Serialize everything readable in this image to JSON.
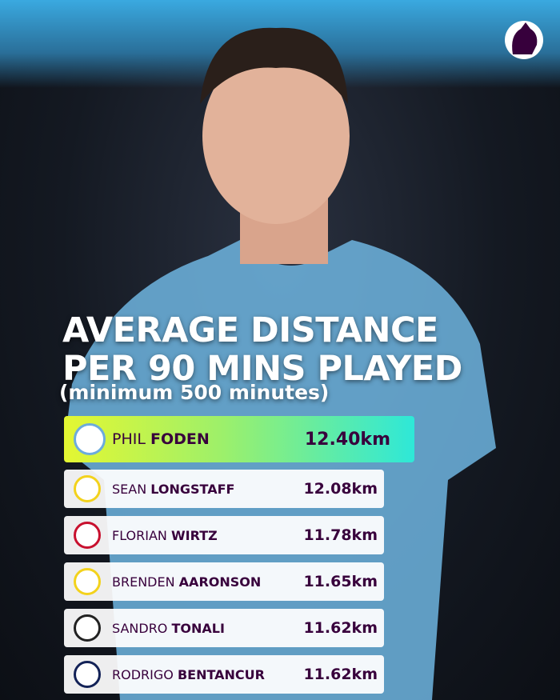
{
  "header": {
    "title_lines": [
      "AVERAGE DISTANCE",
      "PER 90 MINS PLAYED"
    ],
    "subtitle": "(minimum 500 minutes)"
  },
  "table": {
    "rows": [
      {
        "first": "PHIL",
        "last": "FODEN",
        "distance": "12.40km"
      },
      {
        "first": "SEAN",
        "last": "LONGSTAFF",
        "distance": "12.08km"
      },
      {
        "first": "FLORIAN",
        "last": "WIRTZ",
        "distance": "11.78km"
      },
      {
        "first": "BRENDEN",
        "last": "AARONSON",
        "distance": "11.65km"
      },
      {
        "first": "SANDRO",
        "last": "TONALI",
        "distance": "11.62km"
      },
      {
        "first": "RODRIGO",
        "last": "BENTANCUR",
        "distance": "11.62km"
      }
    ]
  }
}
